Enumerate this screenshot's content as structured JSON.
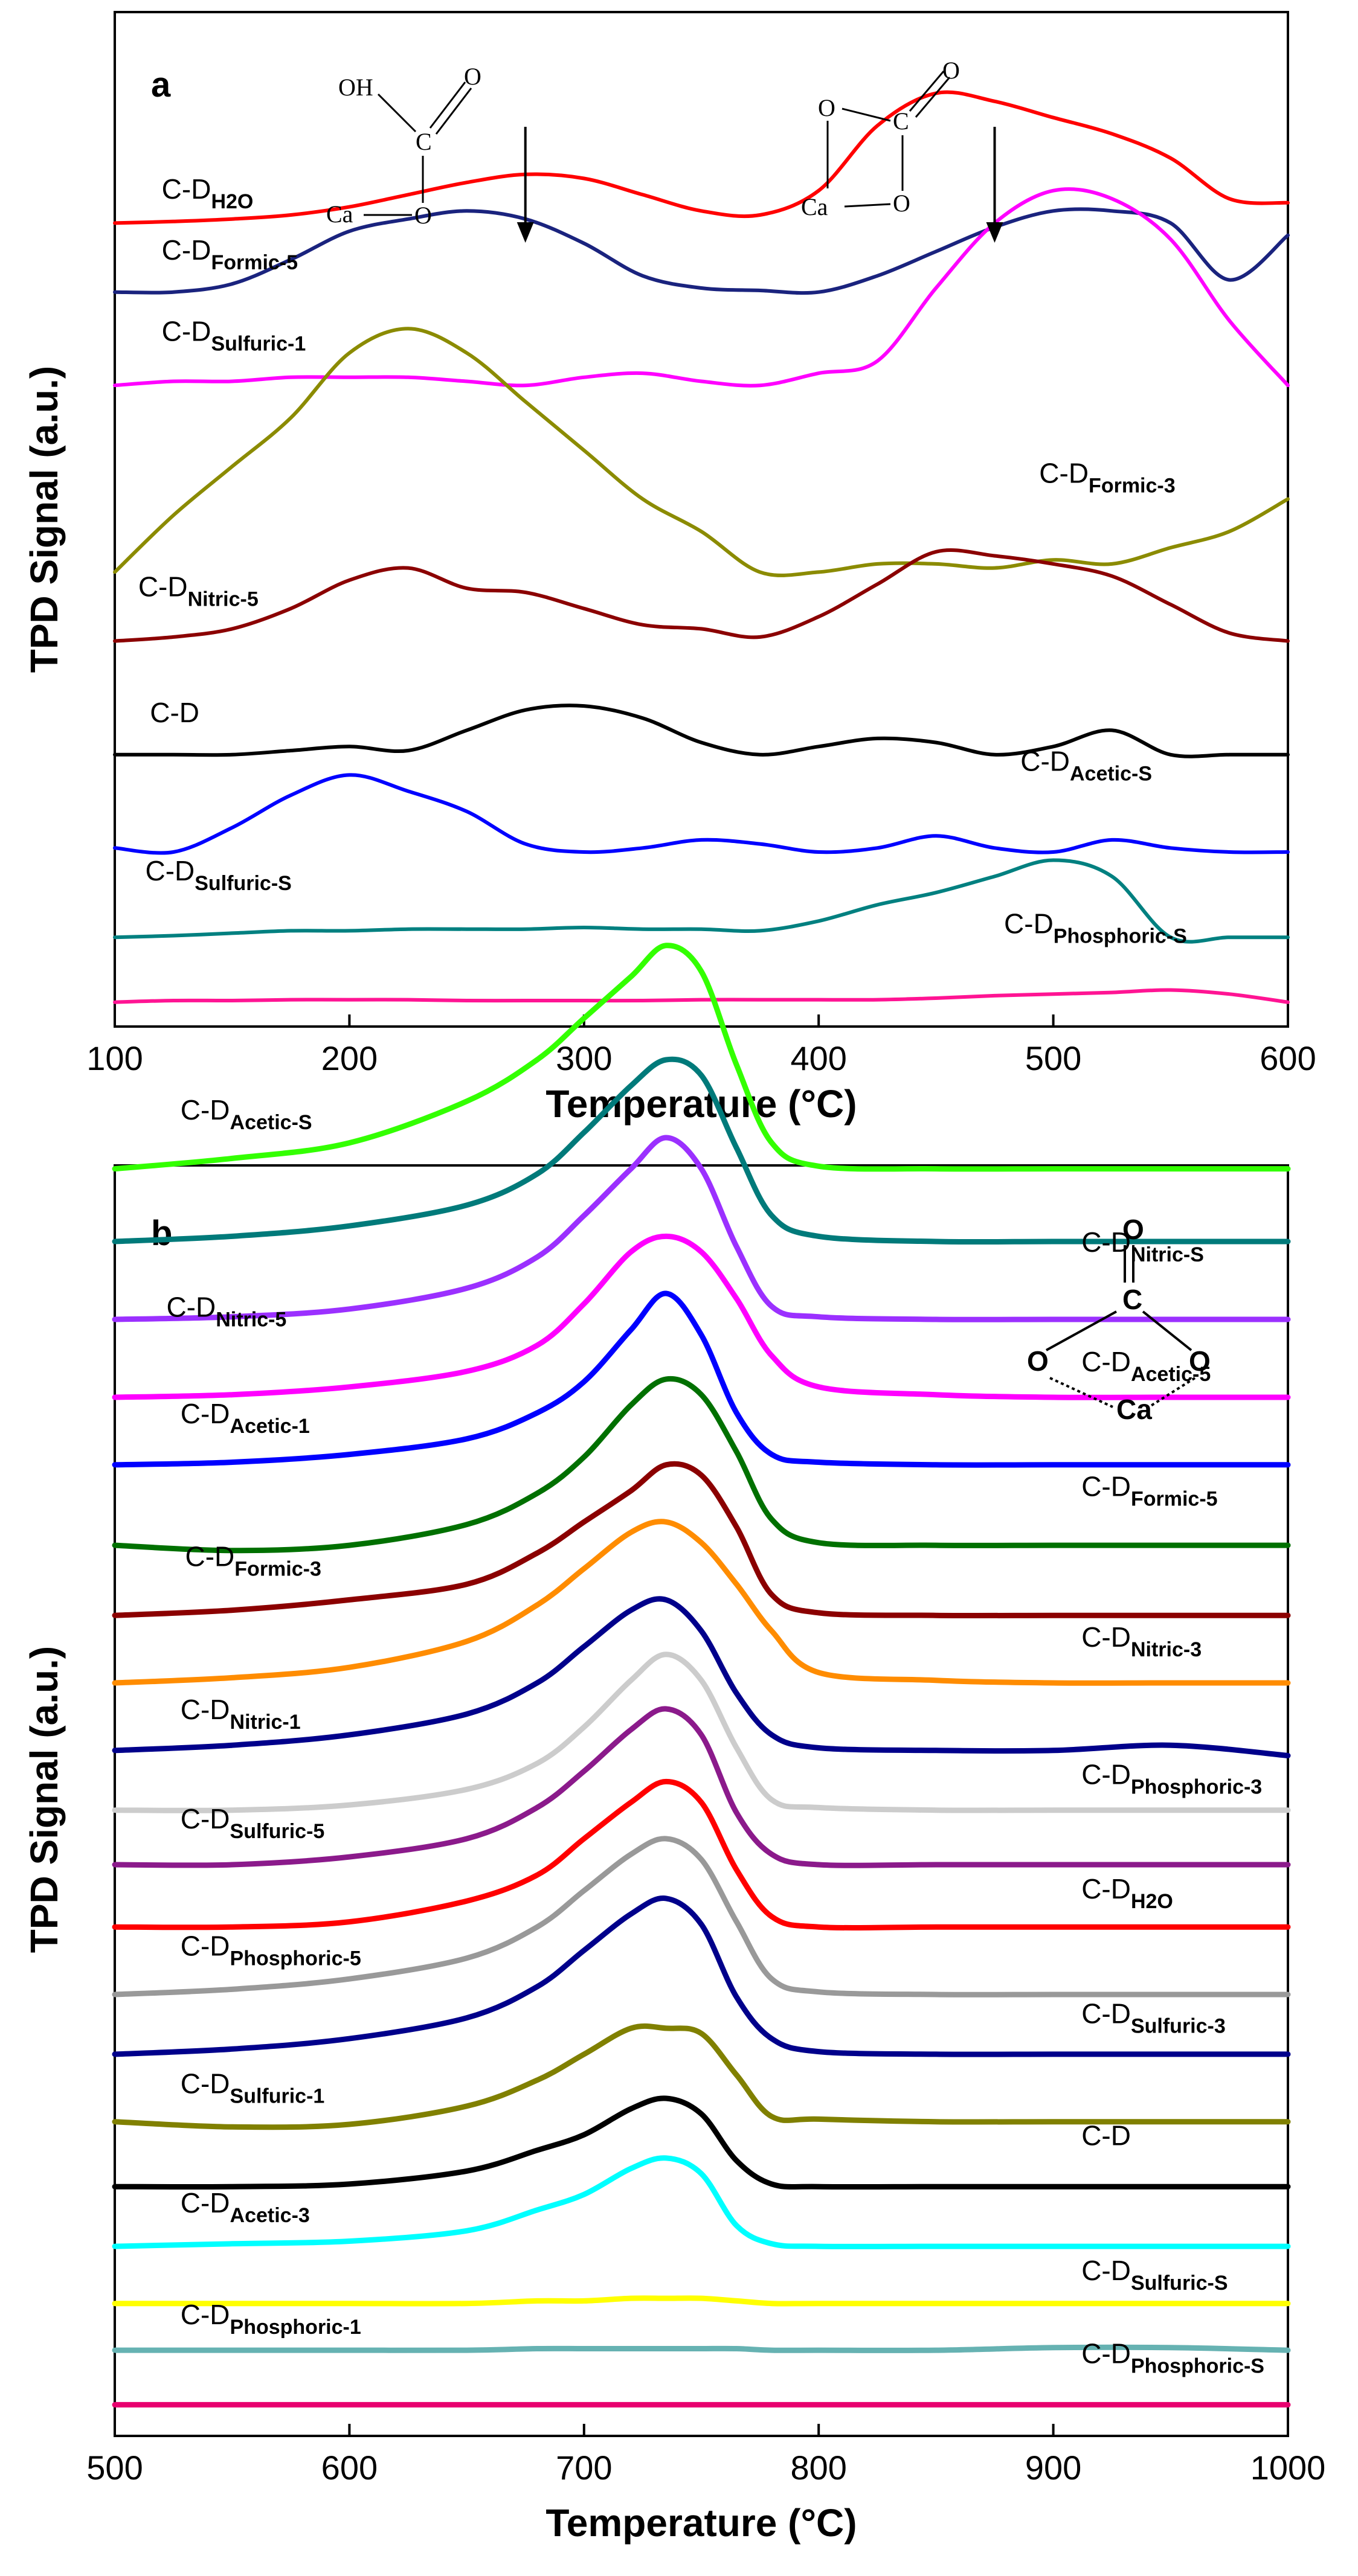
{
  "chart_data": [
    {
      "panel": "a",
      "type": "line",
      "xlabel": "Temperature (°C)",
      "ylabel": "TPD Signal (a.u.)",
      "xlim": [
        100,
        600
      ],
      "xticks": [
        100,
        200,
        300,
        400,
        500,
        600
      ],
      "tick_labels": [
        "100",
        "200",
        "300",
        "400",
        "500",
        "600"
      ],
      "x": [
        100,
        125,
        150,
        175,
        200,
        225,
        250,
        275,
        300,
        325,
        350,
        375,
        400,
        425,
        450,
        475,
        500,
        525,
        550,
        575,
        600
      ],
      "arrows": [
        275,
        475
      ],
      "structures": [
        {
          "name": "calcium formate",
          "labels": [
            "OH",
            "O",
            "C",
            "Ca",
            "O"
          ]
        },
        {
          "name": "calcium carbonate (ring)",
          "labels": [
            "O",
            "O",
            "C",
            "Ca",
            "O"
          ]
        }
      ],
      "series": [
        {
          "name": "H2O",
          "label_base": "C-D",
          "label_sub": "H2O",
          "color": "#ff0000",
          "offset": 8.3,
          "label_side": "left",
          "label_pos": [
            120,
            8.6
          ],
          "values": [
            0.0,
            0.02,
            0.05,
            0.1,
            0.2,
            0.35,
            0.5,
            0.6,
            0.55,
            0.35,
            0.15,
            0.1,
            0.4,
            1.2,
            1.6,
            1.5,
            1.3,
            1.1,
            0.8,
            0.3,
            0.25
          ]
        },
        {
          "name": "Formic-5",
          "label_base": "C-D",
          "label_sub": "Formic-5",
          "color": "#1a237e",
          "offset": 7.45,
          "label_side": "left",
          "label_pos": [
            120,
            7.85
          ],
          "values": [
            0.0,
            0.0,
            0.1,
            0.4,
            0.75,
            0.9,
            1.0,
            0.9,
            0.6,
            0.2,
            0.05,
            0.02,
            0.0,
            0.2,
            0.5,
            0.8,
            1.0,
            1.0,
            0.85,
            0.15,
            0.7
          ]
        },
        {
          "name": "Sulfuric-1",
          "label_base": "C-D",
          "label_sub": "Sulfuric-1",
          "color": "#ff00ff",
          "offset": 6.3,
          "label_side": "left",
          "label_pos": [
            120,
            6.85
          ],
          "values": [
            0.0,
            0.05,
            0.05,
            0.1,
            0.1,
            0.1,
            0.05,
            0.0,
            0.1,
            0.15,
            0.05,
            0.0,
            0.15,
            0.3,
            1.2,
            2.0,
            2.4,
            2.3,
            1.8,
            0.8,
            0.0
          ]
        },
        {
          "name": "Formic-3",
          "label_base": "C-D",
          "label_sub": "Formic-3",
          "color": "#8b8b00",
          "offset": 4.0,
          "label_side": "right",
          "label_pos": [
            494,
            5.1
          ],
          "values": [
            0.0,
            0.7,
            1.3,
            1.9,
            2.7,
            3.0,
            2.7,
            2.1,
            1.5,
            0.9,
            0.5,
            0.0,
            0.0,
            0.1,
            0.1,
            0.05,
            0.15,
            0.1,
            0.3,
            0.5,
            0.9
          ]
        },
        {
          "name": "Nitric-5",
          "label_base": "C-D",
          "label_sub": "Nitric-5",
          "color": "#8b0000",
          "offset": 3.15,
          "label_side": "left",
          "label_pos": [
            110,
            3.7
          ],
          "values": [
            0.0,
            0.05,
            0.15,
            0.4,
            0.75,
            0.9,
            0.65,
            0.6,
            0.4,
            0.2,
            0.15,
            0.05,
            0.3,
            0.7,
            1.1,
            1.05,
            0.95,
            0.8,
            0.45,
            0.1,
            0.0
          ]
        },
        {
          "name": "Untreated",
          "label_base": "C-D",
          "label_sub": "",
          "color": "#000000",
          "offset": 1.75,
          "label_side": "left",
          "label_pos": [
            115,
            2.15
          ],
          "values": [
            0.0,
            0.0,
            0.0,
            0.05,
            0.1,
            0.05,
            0.3,
            0.55,
            0.6,
            0.45,
            0.15,
            0.0,
            0.1,
            0.2,
            0.15,
            0.0,
            0.1,
            0.3,
            0.0,
            0.0,
            0.0
          ]
        },
        {
          "name": "Acetic-S",
          "label_base": "C-D",
          "label_sub": "Acetic-S",
          "color": "#0000ff",
          "offset": 0.55,
          "label_side": "right",
          "label_pos": [
            486,
            1.55
          ],
          "values": [
            0.05,
            0.0,
            0.3,
            0.7,
            0.95,
            0.75,
            0.5,
            0.1,
            0.0,
            0.05,
            0.15,
            0.1,
            0.0,
            0.05,
            0.2,
            0.05,
            0.0,
            0.15,
            0.05,
            0.0,
            0.0
          ]
        },
        {
          "name": "Sulfuric-S",
          "label_base": "C-D",
          "label_sub": "Sulfuric-S",
          "color": "#008080",
          "offset": -0.5,
          "label_side": "left",
          "label_pos": [
            113,
            0.2
          ],
          "values": [
            0.0,
            0.02,
            0.05,
            0.08,
            0.08,
            0.1,
            0.1,
            0.1,
            0.12,
            0.1,
            0.1,
            0.08,
            0.2,
            0.4,
            0.55,
            0.75,
            0.95,
            0.75,
            0.0,
            0.0,
            0.0
          ]
        },
        {
          "name": "Phosphoric-S",
          "label_base": "C-D",
          "label_sub": "Phosphoric-S",
          "color": "#ff1493",
          "offset": -1.3,
          "label_side": "right",
          "label_pos": [
            479,
            -0.45
          ],
          "values": [
            0.0,
            0.02,
            0.02,
            0.03,
            0.03,
            0.03,
            0.02,
            0.02,
            0.02,
            0.02,
            0.03,
            0.03,
            0.03,
            0.03,
            0.05,
            0.08,
            0.1,
            0.12,
            0.15,
            0.1,
            0.0
          ]
        }
      ]
    },
    {
      "panel": "b",
      "type": "line",
      "xlabel": "Temperature (°C)",
      "ylabel": "TPD Signal (a.u.)",
      "xlim": [
        500,
        1000
      ],
      "xticks": [
        500,
        600,
        700,
        800,
        900,
        1000
      ],
      "tick_labels": [
        "500",
        "600",
        "700",
        "800",
        "900",
        "1000"
      ],
      "x": [
        500,
        550,
        600,
        650,
        680,
        700,
        720,
        735,
        750,
        765,
        780,
        800,
        850,
        900,
        950,
        1000
      ],
      "structures": [
        {
          "name": "calcium carbonate (ring)",
          "labels": [
            "O",
            "C",
            "O",
            "O",
            "Ca"
          ]
        }
      ],
      "series": [
        {
          "name": "Acetic-S",
          "label_base": "C-D",
          "label_sub": "Acetic-S",
          "color": "#33ff00",
          "offset": 18.9,
          "label_side": "left",
          "label_pos": [
            528,
            19.85
          ],
          "values": [
            0.0,
            0.2,
            0.5,
            1.3,
            2.1,
            2.9,
            3.7,
            4.3,
            3.8,
            2.0,
            0.5,
            0.05,
            0.0,
            0.0,
            0.0,
            0.0
          ]
        },
        {
          "name": "Nitric-S",
          "label_base": "C-D",
          "label_sub": "Nitric-S",
          "color": "#007a7a",
          "offset": 17.5,
          "label_side": "right",
          "label_pos": [
            912,
            17.3
          ],
          "values": [
            0.0,
            0.1,
            0.3,
            0.7,
            1.3,
            2.1,
            3.0,
            3.5,
            3.2,
            1.8,
            0.5,
            0.1,
            0.0,
            0.0,
            0.0,
            0.0
          ]
        },
        {
          "name": "Nitric-5",
          "label_base": "C-D",
          "label_sub": "Nitric-5",
          "color": "#9b30ff",
          "offset": 16.0,
          "label_side": "left",
          "label_pos": [
            522,
            16.05
          ],
          "values": [
            0.0,
            0.05,
            0.2,
            0.6,
            1.2,
            2.0,
            2.9,
            3.5,
            2.9,
            1.4,
            0.25,
            0.05,
            0.0,
            0.0,
            0.0,
            0.0
          ]
        },
        {
          "name": "Acetic-5",
          "label_base": "C-D",
          "label_sub": "Acetic-5",
          "color": "#ff00ff",
          "offset": 14.5,
          "label_side": "right",
          "label_pos": [
            912,
            15.0
          ],
          "values": [
            0.0,
            0.05,
            0.2,
            0.5,
            1.0,
            1.8,
            2.8,
            3.1,
            2.8,
            1.9,
            0.8,
            0.2,
            0.05,
            0.0,
            0.0,
            0.0
          ]
        },
        {
          "name": "Acetic-1",
          "label_base": "C-D",
          "label_sub": "Acetic-1",
          "color": "#0000ff",
          "offset": 13.2,
          "label_side": "left",
          "label_pos": [
            528,
            14.0
          ],
          "values": [
            0.0,
            0.05,
            0.2,
            0.5,
            1.0,
            1.6,
            2.6,
            3.3,
            2.5,
            1.0,
            0.2,
            0.05,
            0.0,
            0.0,
            0.0,
            0.0
          ]
        },
        {
          "name": "Formic-5",
          "label_base": "C-D",
          "label_sub": "Formic-5",
          "color": "#007000",
          "offset": 11.65,
          "label_side": "right",
          "label_pos": [
            912,
            12.6
          ],
          "values": [
            0.0,
            -0.1,
            0.0,
            0.4,
            1.0,
            1.7,
            2.7,
            3.2,
            2.9,
            1.8,
            0.5,
            0.05,
            0.0,
            0.0,
            0.0,
            0.0
          ]
        },
        {
          "name": "Formic-3",
          "label_base": "C-D",
          "label_sub": "Formic-3",
          "color": "#8b0000",
          "offset": 10.3,
          "label_side": "left",
          "label_pos": [
            530,
            11.25
          ],
          "values": [
            0.0,
            0.1,
            0.3,
            0.6,
            1.2,
            1.8,
            2.4,
            2.9,
            2.7,
            1.7,
            0.4,
            0.05,
            0.0,
            0.0,
            0.0,
            0.0
          ]
        },
        {
          "name": "Nitric-3",
          "label_base": "C-D",
          "label_sub": "Nitric-3",
          "color": "#ff8c00",
          "offset": 9.0,
          "label_side": "right",
          "label_pos": [
            912,
            9.7
          ],
          "values": [
            0.0,
            0.1,
            0.3,
            0.8,
            1.5,
            2.2,
            2.9,
            3.1,
            2.7,
            1.9,
            1.0,
            0.2,
            0.05,
            0.0,
            0.0,
            0.0
          ]
        },
        {
          "name": "Nitric-1",
          "label_base": "C-D",
          "label_sub": "Nitric-1",
          "color": "#00008b",
          "offset": 7.7,
          "label_side": "left",
          "label_pos": [
            528,
            8.3
          ],
          "values": [
            0.0,
            0.1,
            0.3,
            0.7,
            1.3,
            2.0,
            2.7,
            2.9,
            2.3,
            1.1,
            0.3,
            0.05,
            0.0,
            0.0,
            0.1,
            -0.1
          ]
        },
        {
          "name": "Phosphoric-3",
          "label_base": "C-D",
          "label_sub": "Phosphoric-3",
          "color": "#cccccc",
          "offset": 6.55,
          "label_side": "right",
          "label_pos": [
            912,
            7.05
          ],
          "values": [
            0.0,
            0.0,
            0.1,
            0.4,
            0.9,
            1.6,
            2.5,
            3.0,
            2.5,
            1.2,
            0.2,
            0.05,
            0.0,
            0.0,
            0.0,
            0.0
          ]
        },
        {
          "name": "Sulfuric-5",
          "label_base": "C-D",
          "label_sub": "Sulfuric-5",
          "color": "#8b1a8b",
          "offset": 5.5,
          "label_side": "left",
          "label_pos": [
            528,
            6.2
          ],
          "values": [
            0.0,
            0.0,
            0.15,
            0.5,
            1.1,
            1.8,
            2.6,
            3.0,
            2.5,
            1.0,
            0.2,
            0.0,
            0.0,
            0.0,
            0.0,
            0.0
          ]
        },
        {
          "name": "H2O",
          "label_base": "C-D",
          "label_sub": "H2O",
          "color": "#ff0000",
          "offset": 4.3,
          "label_side": "right",
          "label_pos": [
            912,
            4.85
          ],
          "values": [
            0.0,
            0.0,
            0.1,
            0.5,
            1.0,
            1.7,
            2.4,
            2.8,
            2.4,
            1.1,
            0.2,
            0.0,
            0.0,
            0.0,
            0.0,
            0.0
          ]
        },
        {
          "name": "Phosphoric-5",
          "label_base": "C-D",
          "label_sub": "Phosphoric-5",
          "color": "#999999",
          "offset": 3.0,
          "label_side": "left",
          "label_pos": [
            528,
            3.75
          ],
          "values": [
            0.0,
            0.1,
            0.3,
            0.7,
            1.3,
            2.0,
            2.7,
            3.0,
            2.6,
            1.4,
            0.3,
            0.05,
            0.0,
            0.0,
            0.0,
            0.0
          ]
        },
        {
          "name": "Sulfuric-3",
          "label_base": "C-D",
          "label_sub": "Sulfuric-3",
          "color": "#00008b",
          "offset": 1.85,
          "label_side": "right",
          "label_pos": [
            912,
            2.45
          ],
          "values": [
            0.0,
            0.1,
            0.3,
            0.7,
            1.3,
            2.0,
            2.7,
            3.0,
            2.5,
            1.1,
            0.3,
            0.05,
            0.0,
            0.0,
            0.0,
            0.0
          ]
        },
        {
          "name": "Sulfuric-1",
          "label_base": "C-D",
          "label_sub": "Sulfuric-1",
          "color": "#808000",
          "offset": 0.55,
          "label_side": "left",
          "label_pos": [
            528,
            1.1
          ],
          "values": [
            0.0,
            -0.1,
            -0.05,
            0.3,
            0.8,
            1.3,
            1.8,
            1.8,
            1.7,
            0.9,
            0.1,
            0.05,
            0.0,
            0.0,
            0.0,
            0.0
          ]
        },
        {
          "name": "Untreated",
          "label_base": "C-D",
          "label_sub": "",
          "color": "#000000",
          "offset": -0.7,
          "label_side": "right",
          "label_pos": [
            912,
            0.1
          ],
          "values": [
            0.0,
            0.0,
            0.05,
            0.3,
            0.7,
            1.0,
            1.5,
            1.7,
            1.4,
            0.5,
            0.05,
            0.0,
            0.0,
            0.0,
            0.0,
            0.0
          ]
        },
        {
          "name": "Acetic-3",
          "label_base": "C-D",
          "label_sub": "Acetic-3",
          "color": "#00ffff",
          "offset": -1.85,
          "label_side": "left",
          "label_pos": [
            528,
            -1.2
          ],
          "values": [
            0.0,
            0.05,
            0.1,
            0.3,
            0.7,
            1.0,
            1.5,
            1.7,
            1.4,
            0.4,
            0.05,
            0.0,
            0.0,
            0.0,
            0.0,
            0.0
          ]
        },
        {
          "name": "Sulfuric-S",
          "label_base": "C-D",
          "label_sub": "Sulfuric-S",
          "color": "#ffff00",
          "offset": -2.95,
          "label_side": "right",
          "label_pos": [
            912,
            -2.5
          ],
          "values": [
            0.0,
            0.0,
            0.0,
            0.0,
            0.05,
            0.05,
            0.1,
            0.1,
            0.1,
            0.05,
            0.0,
            0.0,
            0.0,
            0.0,
            0.0,
            0.0
          ]
        },
        {
          "name": "Phosphoric-1",
          "label_base": "C-D",
          "label_sub": "Phosphoric-1",
          "color": "#66b2b2",
          "offset": -3.85,
          "label_side": "left",
          "label_pos": [
            528,
            -3.35
          ],
          "values": [
            0.0,
            0.0,
            0.0,
            0.0,
            0.03,
            0.03,
            0.03,
            0.03,
            0.03,
            0.03,
            0.0,
            0.0,
            0.0,
            0.05,
            0.05,
            0.0
          ]
        },
        {
          "name": "Phosphoric-S",
          "label_base": "C-D",
          "label_sub": "Phosphoric-S",
          "color": "#e8006f",
          "offset": -4.9,
          "label_side": "right",
          "label_pos": [
            912,
            -4.1
          ],
          "values": [
            0.0,
            0.0,
            0.0,
            0.0,
            0.0,
            0.0,
            0.0,
            0.0,
            0.0,
            0.0,
            0.0,
            0.0,
            0.0,
            0.0,
            0.0,
            0.0
          ]
        }
      ]
    }
  ]
}
